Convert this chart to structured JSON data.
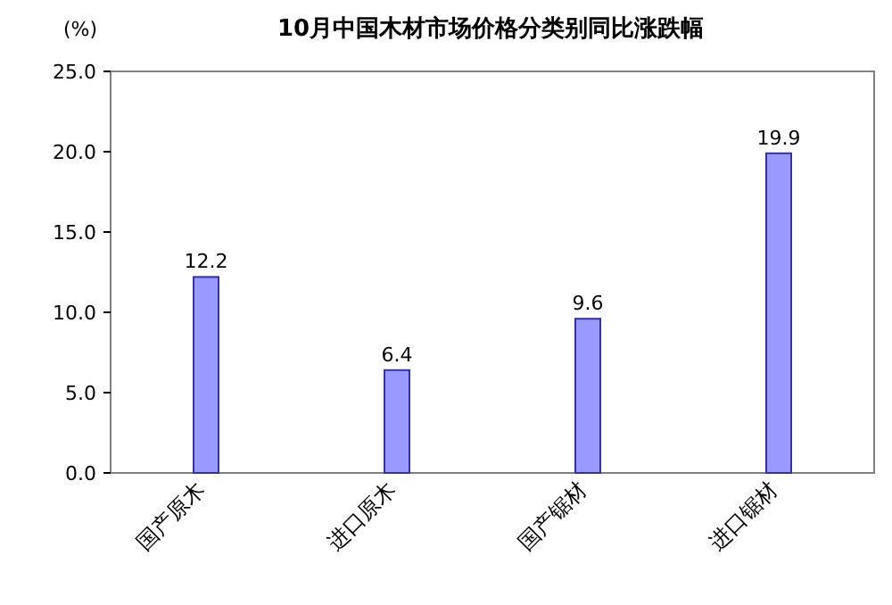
{
  "chart_data": {
    "type": "bar",
    "title": "10月中国木材市场价格分类别同比涨跌幅",
    "ylabel": "(%)",
    "categories": [
      "国产原木",
      "进口原木",
      "国产锯材",
      "进口锯材"
    ],
    "values": [
      12.2,
      6.4,
      9.6,
      19.9
    ],
    "color": "#9999ff",
    "data_labels": true,
    "ylim": [
      0,
      25
    ],
    "yticks": [
      {
        "value": 0,
        "label": "0.0"
      },
      {
        "value": 5,
        "label": "5.0"
      },
      {
        "value": 10,
        "label": "10.0"
      },
      {
        "value": 15,
        "label": "15.0"
      },
      {
        "value": 20,
        "label": "20.0"
      },
      {
        "value": 25,
        "label": "25.0"
      }
    ]
  }
}
